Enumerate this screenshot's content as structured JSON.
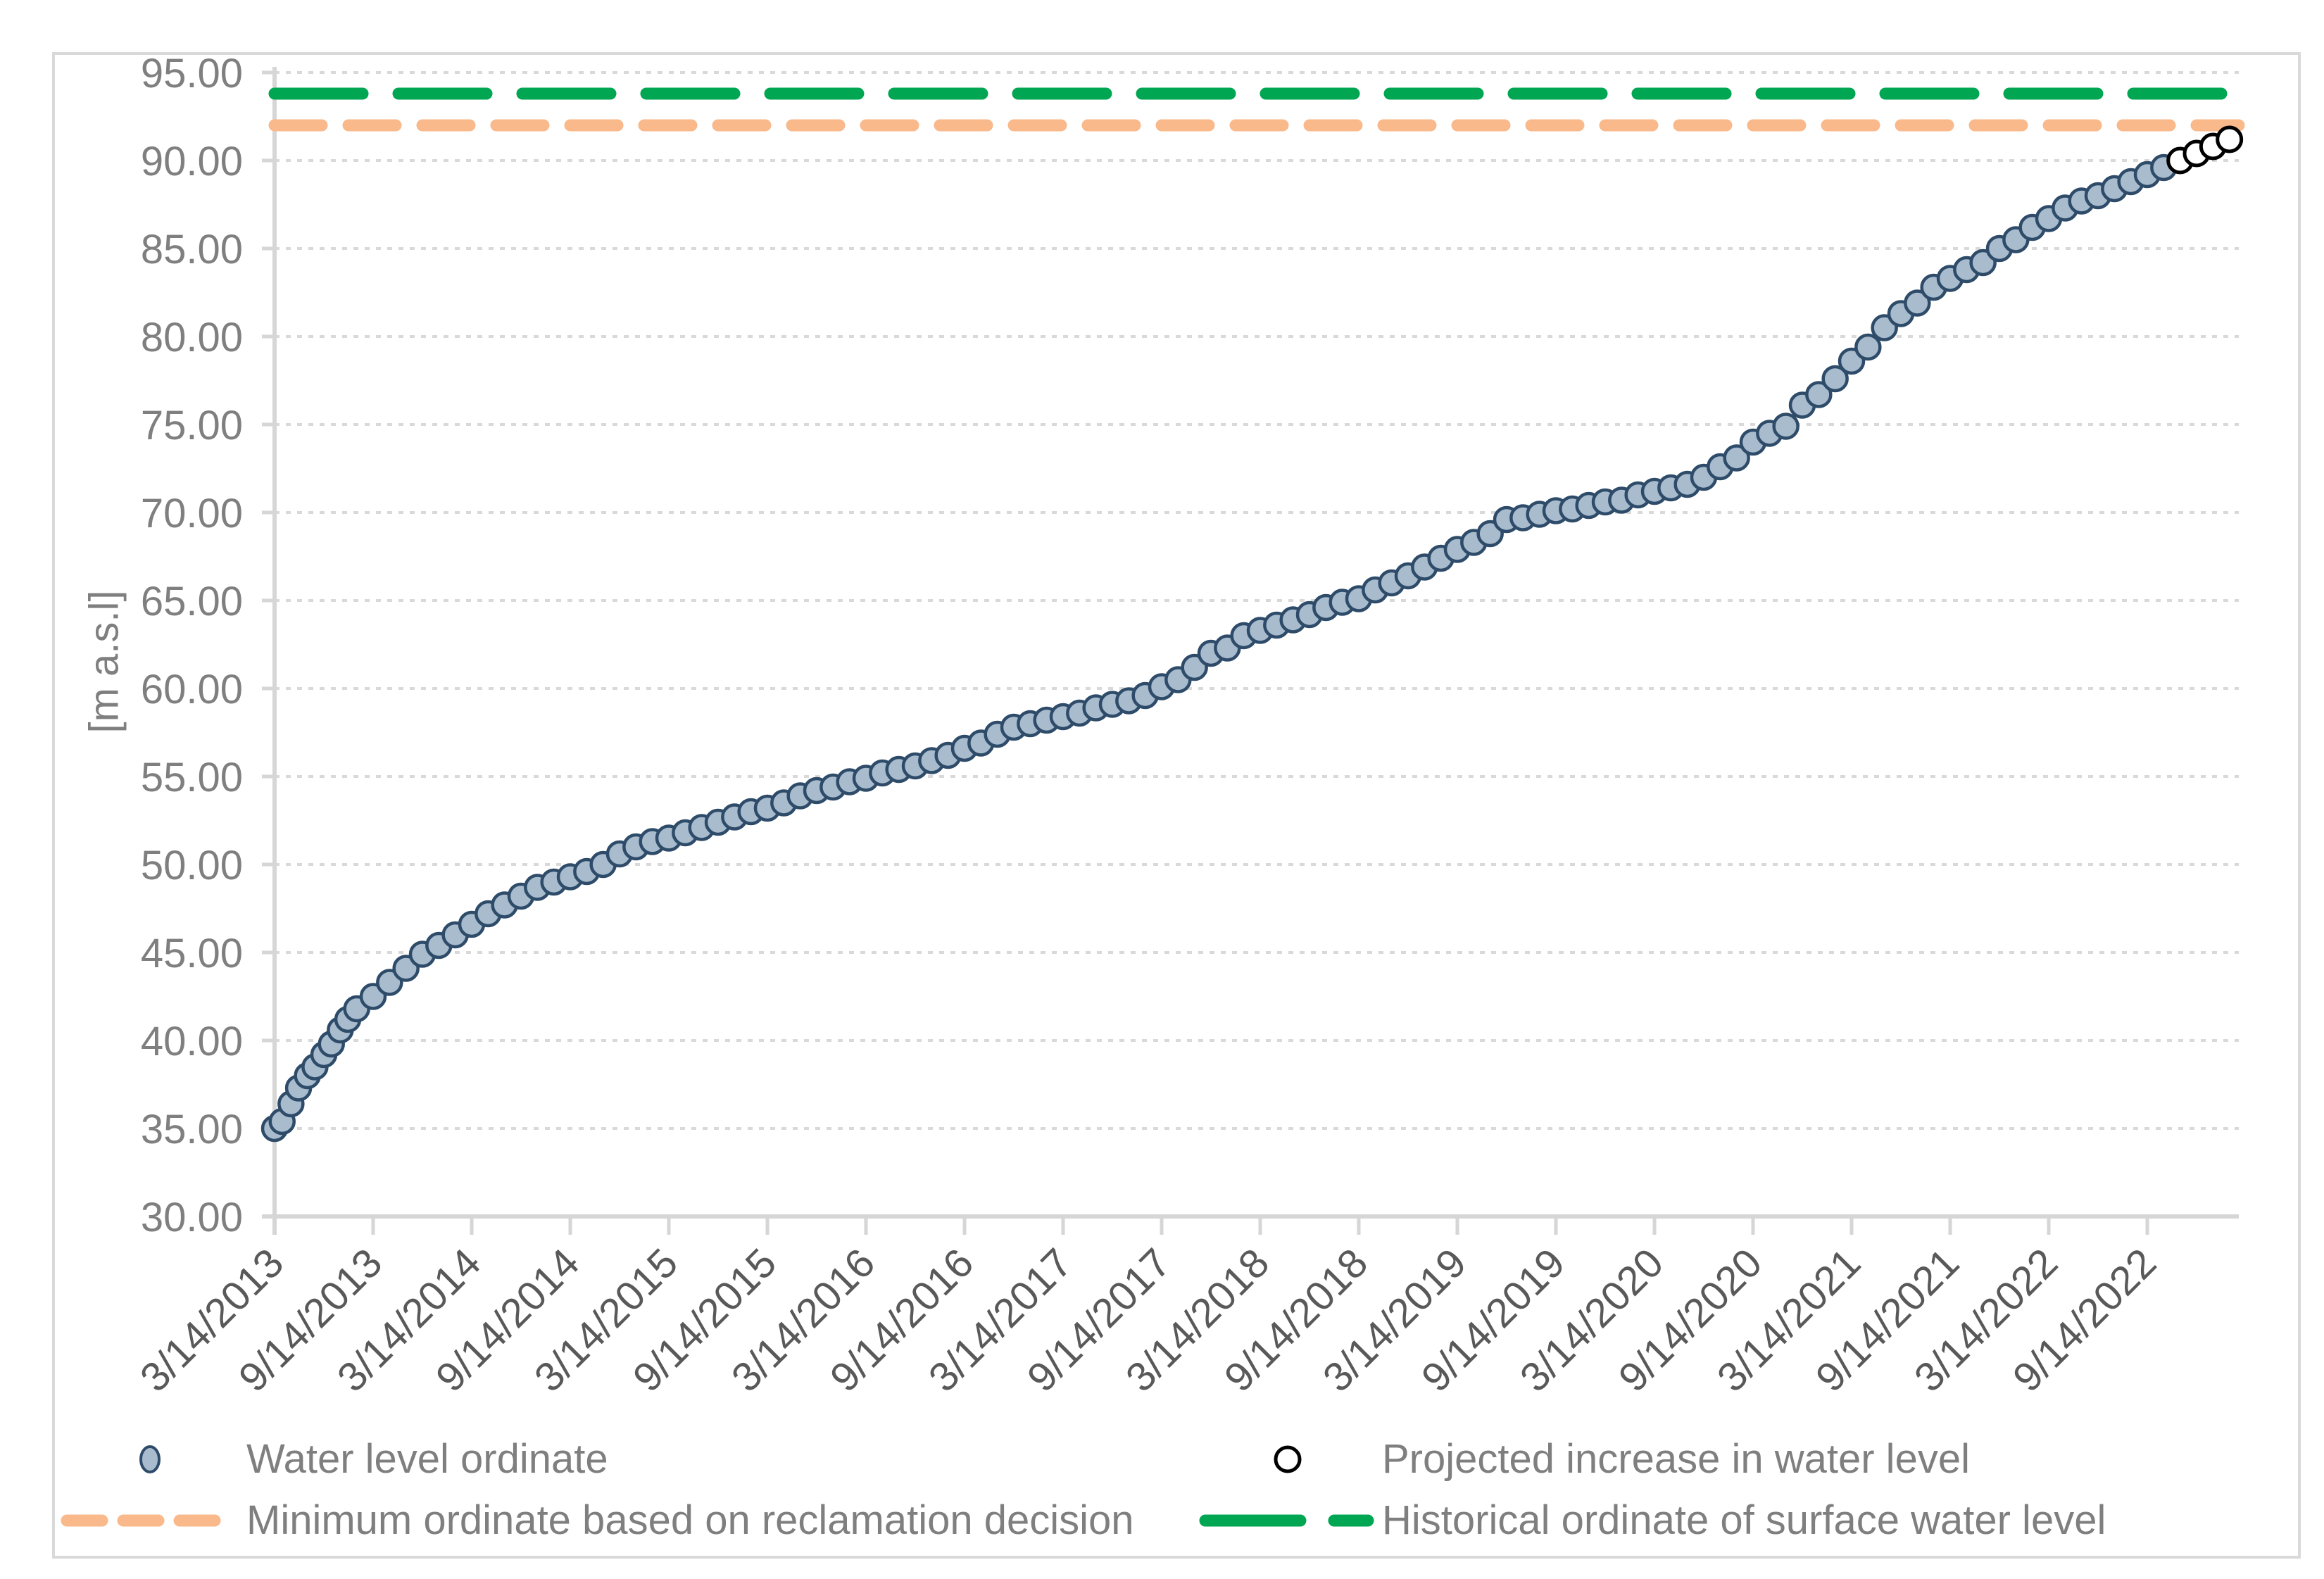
{
  "figure": {
    "background": "#ffffff",
    "border_color": "#d9d9d9"
  },
  "colors": {
    "marker_fill": "#a9bcce",
    "marker_stroke": "#2e4c69",
    "projected_fill": "#ffffff",
    "projected_stroke": "#000000",
    "minimum_line": "#f9b98b",
    "historical_line": "#00a651",
    "gridline": "#d9d9d9",
    "axis": "#d6d6d6",
    "y_tick_text": "#7f7f7f",
    "x_tick_text": "#595959",
    "legend_text": "#7f7f7f"
  },
  "chart_data": {
    "type": "scatter",
    "title": "",
    "xlabel": "",
    "ylabel": "[m a.s.l]",
    "ylim": [
      30,
      95
    ],
    "ytick_step": 5,
    "grid": "horizontal dotted gridlines only",
    "legend_position": "bottom, two columns",
    "yticks": [
      {
        "value": 95,
        "label": "95.00"
      },
      {
        "value": 90,
        "label": "90.00"
      },
      {
        "value": 85,
        "label": "85.00"
      },
      {
        "value": 80,
        "label": "80.00"
      },
      {
        "value": 75,
        "label": "75.00"
      },
      {
        "value": 70,
        "label": "70.00"
      },
      {
        "value": 65,
        "label": "65.00"
      },
      {
        "value": 60,
        "label": "60.00"
      },
      {
        "value": 55,
        "label": "55.00"
      },
      {
        "value": 50,
        "label": "50.00"
      },
      {
        "value": 45,
        "label": "45.00"
      },
      {
        "value": 40,
        "label": "40.00"
      },
      {
        "value": 35,
        "label": "35.00"
      },
      {
        "value": 30,
        "label": "30.00"
      }
    ],
    "xticks": [
      "3/14/2013",
      "9/14/2013",
      "3/14/2014",
      "9/14/2014",
      "3/14/2015",
      "9/14/2015",
      "3/14/2016",
      "9/14/2016",
      "3/14/2017",
      "9/14/2017",
      "3/14/2018",
      "9/14/2018",
      "3/14/2019",
      "9/14/2019",
      "3/14/2020",
      "9/14/2020",
      "3/14/2021",
      "9/14/2021",
      "3/14/2022",
      "9/14/2022"
    ],
    "reference_lines": [
      {
        "name": "minimum_ordinate",
        "value": 92.0,
        "style": "short-dash",
        "color": "#f9b98b"
      },
      {
        "name": "historical_ordinate",
        "value": 93.8,
        "style": "long-dash",
        "color": "#00a651"
      }
    ],
    "series": [
      {
        "name": "Water level ordinate",
        "marker": "filled-circle",
        "points": [
          [
            "3/14/2013",
            35.0
          ],
          [
            "3/28/2013",
            35.4
          ],
          [
            "4/14/2013",
            36.4
          ],
          [
            "4/28/2013",
            37.3
          ],
          [
            "5/14/2013",
            38.0
          ],
          [
            "5/28/2013",
            38.5
          ],
          [
            "6/14/2013",
            39.2
          ],
          [
            "6/28/2013",
            39.8
          ],
          [
            "7/14/2013",
            40.6
          ],
          [
            "7/28/2013",
            41.2
          ],
          [
            "8/14/2013",
            41.8
          ],
          [
            "9/14/2013",
            42.5
          ],
          [
            "10/14/2013",
            43.3
          ],
          [
            "11/14/2013",
            44.1
          ],
          [
            "12/14/2013",
            44.9
          ],
          [
            "1/14/2014",
            45.4
          ],
          [
            "2/14/2014",
            46.0
          ],
          [
            "3/14/2014",
            46.6
          ],
          [
            "4/14/2014",
            47.2
          ],
          [
            "5/14/2014",
            47.7
          ],
          [
            "6/14/2014",
            48.2
          ],
          [
            "7/14/2014",
            48.7
          ],
          [
            "8/14/2014",
            49.0
          ],
          [
            "9/14/2014",
            49.3
          ],
          [
            "10/14/2014",
            49.6
          ],
          [
            "11/14/2014",
            50.0
          ],
          [
            "12/14/2014",
            50.6
          ],
          [
            "1/14/2015",
            51.0
          ],
          [
            "2/14/2015",
            51.3
          ],
          [
            "3/14/2015",
            51.5
          ],
          [
            "4/14/2015",
            51.8
          ],
          [
            "5/14/2015",
            52.1
          ],
          [
            "6/14/2015",
            52.4
          ],
          [
            "7/14/2015",
            52.7
          ],
          [
            "8/14/2015",
            53.0
          ],
          [
            "9/14/2015",
            53.2
          ],
          [
            "10/14/2015",
            53.5
          ],
          [
            "11/14/2015",
            53.9
          ],
          [
            "12/14/2015",
            54.2
          ],
          [
            "1/14/2016",
            54.4
          ],
          [
            "2/14/2016",
            54.7
          ],
          [
            "3/14/2016",
            54.9
          ],
          [
            "4/14/2016",
            55.2
          ],
          [
            "5/14/2016",
            55.4
          ],
          [
            "6/14/2016",
            55.6
          ],
          [
            "7/14/2016",
            55.9
          ],
          [
            "8/14/2016",
            56.2
          ],
          [
            "9/14/2016",
            56.6
          ],
          [
            "10/14/2016",
            56.9
          ],
          [
            "11/14/2016",
            57.4
          ],
          [
            "12/14/2016",
            57.8
          ],
          [
            "1/14/2017",
            58.0
          ],
          [
            "2/14/2017",
            58.2
          ],
          [
            "3/14/2017",
            58.4
          ],
          [
            "4/14/2017",
            58.6
          ],
          [
            "5/14/2017",
            58.9
          ],
          [
            "6/14/2017",
            59.1
          ],
          [
            "7/14/2017",
            59.3
          ],
          [
            "8/14/2017",
            59.6
          ],
          [
            "9/14/2017",
            60.1
          ],
          [
            "10/14/2017",
            60.5
          ],
          [
            "11/14/2017",
            61.2
          ],
          [
            "12/14/2017",
            62.0
          ],
          [
            "1/14/2018",
            62.3
          ],
          [
            "2/14/2018",
            63.0
          ],
          [
            "3/14/2018",
            63.3
          ],
          [
            "4/14/2018",
            63.6
          ],
          [
            "5/14/2018",
            63.9
          ],
          [
            "6/14/2018",
            64.2
          ],
          [
            "7/14/2018",
            64.6
          ],
          [
            "8/14/2018",
            64.9
          ],
          [
            "9/14/2018",
            65.1
          ],
          [
            "10/14/2018",
            65.6
          ],
          [
            "11/14/2018",
            66.0
          ],
          [
            "12/14/2018",
            66.4
          ],
          [
            "1/14/2019",
            66.9
          ],
          [
            "2/14/2019",
            67.4
          ],
          [
            "3/14/2019",
            67.9
          ],
          [
            "4/14/2019",
            68.3
          ],
          [
            "5/14/2019",
            68.8
          ],
          [
            "6/14/2019",
            69.6
          ],
          [
            "7/14/2019",
            69.7
          ],
          [
            "8/14/2019",
            69.9
          ],
          [
            "9/14/2019",
            70.1
          ],
          [
            "10/14/2019",
            70.2
          ],
          [
            "11/14/2019",
            70.4
          ],
          [
            "12/14/2019",
            70.6
          ],
          [
            "1/14/2020",
            70.7
          ],
          [
            "2/14/2020",
            71.0
          ],
          [
            "3/14/2020",
            71.2
          ],
          [
            "4/14/2020",
            71.4
          ],
          [
            "5/14/2020",
            71.6
          ],
          [
            "6/14/2020",
            72.0
          ],
          [
            "7/14/2020",
            72.6
          ],
          [
            "8/14/2020",
            73.1
          ],
          [
            "9/14/2020",
            74.0
          ],
          [
            "10/14/2020",
            74.5
          ],
          [
            "11/14/2020",
            74.9
          ],
          [
            "12/14/2020",
            76.1
          ],
          [
            "1/14/2021",
            76.7
          ],
          [
            "2/14/2021",
            77.6
          ],
          [
            "3/14/2021",
            78.6
          ],
          [
            "4/14/2021",
            79.4
          ],
          [
            "5/14/2021",
            80.5
          ],
          [
            "6/14/2021",
            81.3
          ],
          [
            "7/14/2021",
            81.9
          ],
          [
            "8/14/2021",
            82.8
          ],
          [
            "9/14/2021",
            83.3
          ],
          [
            "10/14/2021",
            83.8
          ],
          [
            "11/14/2021",
            84.2
          ],
          [
            "12/14/2021",
            85.0
          ],
          [
            "1/14/2022",
            85.5
          ],
          [
            "2/14/2022",
            86.2
          ],
          [
            "3/14/2022",
            86.7
          ],
          [
            "4/14/2022",
            87.3
          ],
          [
            "5/14/2022",
            87.7
          ],
          [
            "6/14/2022",
            88.0
          ],
          [
            "7/14/2022",
            88.4
          ],
          [
            "8/14/2022",
            88.8
          ],
          [
            "9/14/2022",
            89.2
          ],
          [
            "10/14/2022",
            89.6
          ]
        ]
      },
      {
        "name": "Projected increase in water level",
        "marker": "open-circle",
        "points": [
          [
            "11/14/2022",
            90.0
          ],
          [
            "12/14/2022",
            90.4
          ],
          [
            "1/14/2023",
            90.8
          ],
          [
            "2/14/2023",
            91.2
          ]
        ]
      }
    ],
    "legend": [
      {
        "label": "Water level ordinate",
        "marker": "blue-ellipse"
      },
      {
        "label": "Projected increase in water level",
        "marker": "white-circle"
      },
      {
        "label": "Minimum ordinate based on reclamation decision",
        "marker": "orange-dashed-line"
      },
      {
        "label": "Historical ordinate of surface water level",
        "marker": "green-dashed-line"
      }
    ]
  }
}
